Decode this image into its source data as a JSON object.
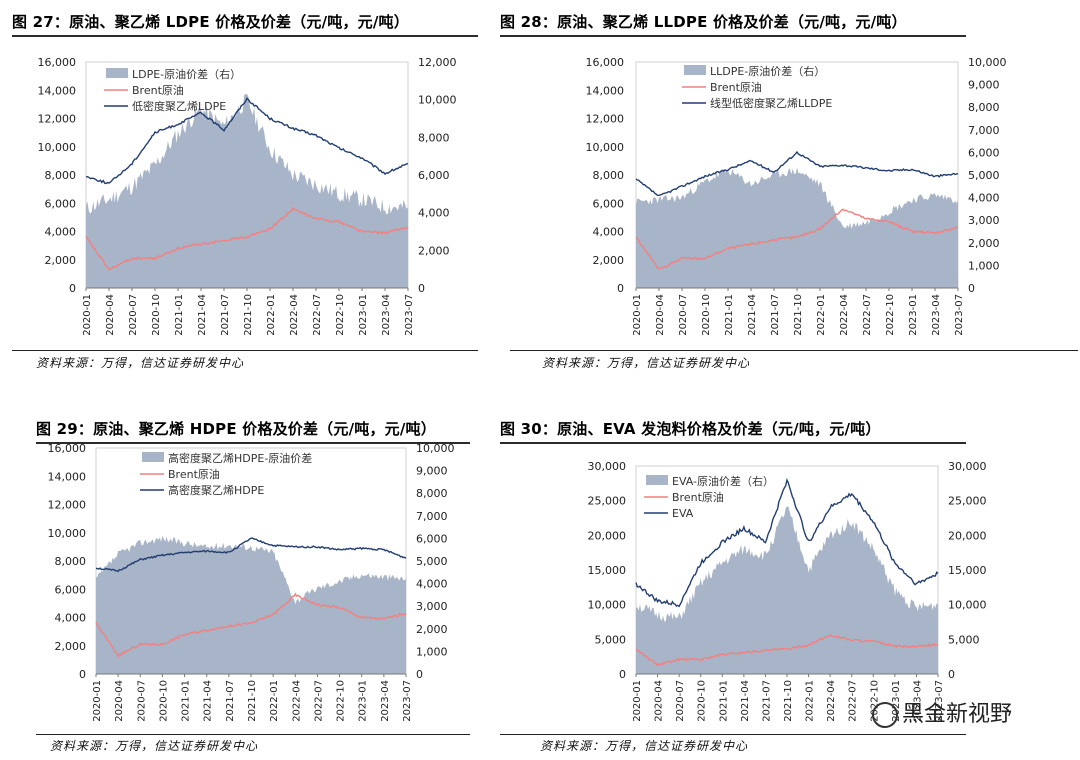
{
  "figures": [
    {
      "title": "图 27：原油、聚乙烯 LDPE 价格及价差（元/吨，元/吨）",
      "source": "资料来源：万得，信达证券研发中心"
    },
    {
      "title": "图 28：原油、聚乙烯 LLDPE 价格及价差（元/吨，元/吨）",
      "source": "资料来源：万得，信达证券研发中心"
    },
    {
      "title": "图 29：原油、聚乙烯 HDPE 价格及价差（元/吨，元/吨）",
      "source": "资料来源：万得，信达证券研发中心"
    },
    {
      "title": "图 30：原油、EVA 发泡料价格及价差（元/吨，元/吨）",
      "source": "资料来源：万得，信达证券研发中心"
    }
  ],
  "watermark": "黑金新视野",
  "colors": {
    "area": "#a8b4c8",
    "brent": "#f2807e",
    "product": "#233e72"
  },
  "chart_data": [
    {
      "type": "line",
      "categories": [
        "2020-01",
        "2020-04",
        "2020-07",
        "2020-10",
        "2021-01",
        "2021-04",
        "2021-07",
        "2021-10",
        "2022-01",
        "2022-04",
        "2022-07",
        "2022-10",
        "2023-01",
        "2023-04",
        "2023-07"
      ],
      "left_axis": {
        "ylim": [
          0,
          16000
        ],
        "ticks": [
          "0",
          "2,000",
          "4,000",
          "6,000",
          "8,000",
          "10,000",
          "12,000",
          "14,000",
          "16,000"
        ]
      },
      "right_axis": {
        "ylim": [
          0,
          12000
        ],
        "ticks": [
          "0",
          "2,000",
          "4,000",
          "6,000",
          "8,000",
          "10,000",
          "12,000"
        ]
      },
      "legend": "top-left",
      "series": [
        {
          "name": "LDPE-原油价差（右）",
          "kind": "area",
          "axis": "right",
          "values": [
            4200,
            4700,
            5400,
            6500,
            8200,
            9500,
            8600,
            10000,
            7400,
            6000,
            5500,
            5000,
            4700,
            4300,
            4300
          ]
        },
        {
          "name": "Brent原油",
          "kind": "line",
          "axis": "left",
          "values": [
            3600,
            1300,
            2100,
            2100,
            2800,
            3100,
            3400,
            3600,
            4200,
            5600,
            4900,
            4700,
            4000,
            3900,
            4300
          ]
        },
        {
          "name": "低密度聚乙烯LDPE",
          "kind": "line",
          "axis": "left",
          "values": [
            7900,
            7400,
            8800,
            11000,
            11600,
            12400,
            11200,
            13400,
            12000,
            11300,
            10800,
            9900,
            9200,
            8100,
            8800
          ]
        }
      ]
    },
    {
      "type": "line",
      "categories": [
        "2020-01",
        "2020-04",
        "2020-07",
        "2020-10",
        "2021-01",
        "2021-04",
        "2021-07",
        "2021-10",
        "2022-01",
        "2022-04",
        "2022-07",
        "2022-10",
        "2023-01",
        "2023-04",
        "2023-07"
      ],
      "left_axis": {
        "ylim": [
          0,
          16000
        ],
        "ticks": [
          "0",
          "2,000",
          "4,000",
          "6,000",
          "8,000",
          "10,000",
          "12,000",
          "14,000",
          "16,000"
        ]
      },
      "right_axis": {
        "ylim": [
          0,
          10000
        ],
        "ticks": [
          "0",
          "1,000",
          "2,000",
          "3,000",
          "4,000",
          "5,000",
          "6,000",
          "7,000",
          "8,000",
          "9,000",
          "10,000"
        ]
      },
      "legend": "top-left",
      "series": [
        {
          "name": "LLDPE-原油价差（右）",
          "kind": "area",
          "axis": "right",
          "values": [
            3800,
            3900,
            4000,
            4700,
            5200,
            4600,
            5000,
            5200,
            4600,
            2700,
            2900,
            3400,
            3900,
            4100,
            3900
          ]
        },
        {
          "name": "Brent原油",
          "kind": "line",
          "axis": "left",
          "values": [
            3600,
            1300,
            2100,
            2100,
            2800,
            3100,
            3400,
            3600,
            4200,
            5600,
            4900,
            4700,
            4000,
            3900,
            4300
          ]
        },
        {
          "name": "线型低密度聚乙烯LLDPE",
          "kind": "line",
          "axis": "left",
          "values": [
            7700,
            6500,
            7200,
            7900,
            8400,
            9000,
            8200,
            9600,
            8600,
            8700,
            8500,
            8300,
            8400,
            7900,
            8100
          ]
        }
      ]
    },
    {
      "type": "line",
      "categories": [
        "2020-01",
        "2020-04",
        "2020-07",
        "2020-10",
        "2021-01",
        "2021-04",
        "2021-07",
        "2021-10",
        "2022-01",
        "2022-04",
        "2022-07",
        "2022-10",
        "2023-01",
        "2023-04",
        "2023-07"
      ],
      "left_axis": {
        "ylim": [
          0,
          16000
        ],
        "ticks": [
          "0",
          "2,000",
          "4,000",
          "6,000",
          "8,000",
          "10,000",
          "12,000",
          "14,000",
          "16,000"
        ]
      },
      "right_axis": {
        "ylim": [
          0,
          10000
        ],
        "ticks": [
          "0",
          "1,000",
          "2,000",
          "3,000",
          "4,000",
          "5,000",
          "6,000",
          "7,000",
          "8,000",
          "9,000",
          "10,000"
        ]
      },
      "legend": "top-left",
      "series": [
        {
          "name": "高密度聚乙烯HDPE-原油价差",
          "kind": "area",
          "axis": "right",
          "values": [
            4200,
            5300,
            5800,
            6000,
            5800,
            5600,
            5700,
            5600,
            5400,
            3200,
            3800,
            4100,
            4400,
            4300,
            4200
          ]
        },
        {
          "name": "Brent原油",
          "kind": "line",
          "axis": "left",
          "values": [
            3600,
            1300,
            2100,
            2100,
            2800,
            3100,
            3400,
            3600,
            4200,
            5600,
            4900,
            4700,
            4000,
            3900,
            4300
          ]
        },
        {
          "name": "高密度聚乙烯HDPE",
          "kind": "line",
          "axis": "left",
          "values": [
            7500,
            7300,
            8100,
            8400,
            8600,
            8700,
            8600,
            9600,
            9100,
            9000,
            9000,
            8800,
            8900,
            8800,
            8200
          ]
        }
      ]
    },
    {
      "type": "line",
      "categories": [
        "2020-01",
        "2020-04",
        "2020-07",
        "2020-10",
        "2021-01",
        "2021-04",
        "2021-07",
        "2021-10",
        "2022-01",
        "2022-04",
        "2022-07",
        "2022-10",
        "2023-01",
        "2023-04",
        "2023-07"
      ],
      "left_axis": {
        "ylim": [
          0,
          30000
        ],
        "ticks": [
          "0",
          "5,000",
          "10,000",
          "15,000",
          "20,000",
          "25,000",
          "30,000"
        ]
      },
      "right_axis": {
        "ylim": [
          0,
          30000
        ],
        "ticks": [
          "0",
          "5,000",
          "10,000",
          "15,000",
          "20,000",
          "25,000",
          "30,000"
        ]
      },
      "legend": "top-left",
      "series": [
        {
          "name": "EVA-原油价差（右）",
          "kind": "area",
          "axis": "right",
          "values": [
            10000,
            8500,
            8000,
            13000,
            16000,
            18000,
            17000,
            24000,
            15000,
            20000,
            22000,
            18000,
            12000,
            9500,
            10000
          ]
        },
        {
          "name": "Brent原油",
          "kind": "line",
          "axis": "left",
          "values": [
            3600,
            1300,
            2100,
            2100,
            2800,
            3100,
            3400,
            3600,
            4200,
            5600,
            4900,
            4700,
            4000,
            3900,
            4300
          ]
        },
        {
          "name": "EVA",
          "kind": "line",
          "axis": "left",
          "values": [
            13000,
            10500,
            10000,
            16000,
            19000,
            21000,
            19000,
            28000,
            19000,
            24000,
            26000,
            22000,
            16000,
            13000,
            14500
          ]
        }
      ]
    }
  ]
}
